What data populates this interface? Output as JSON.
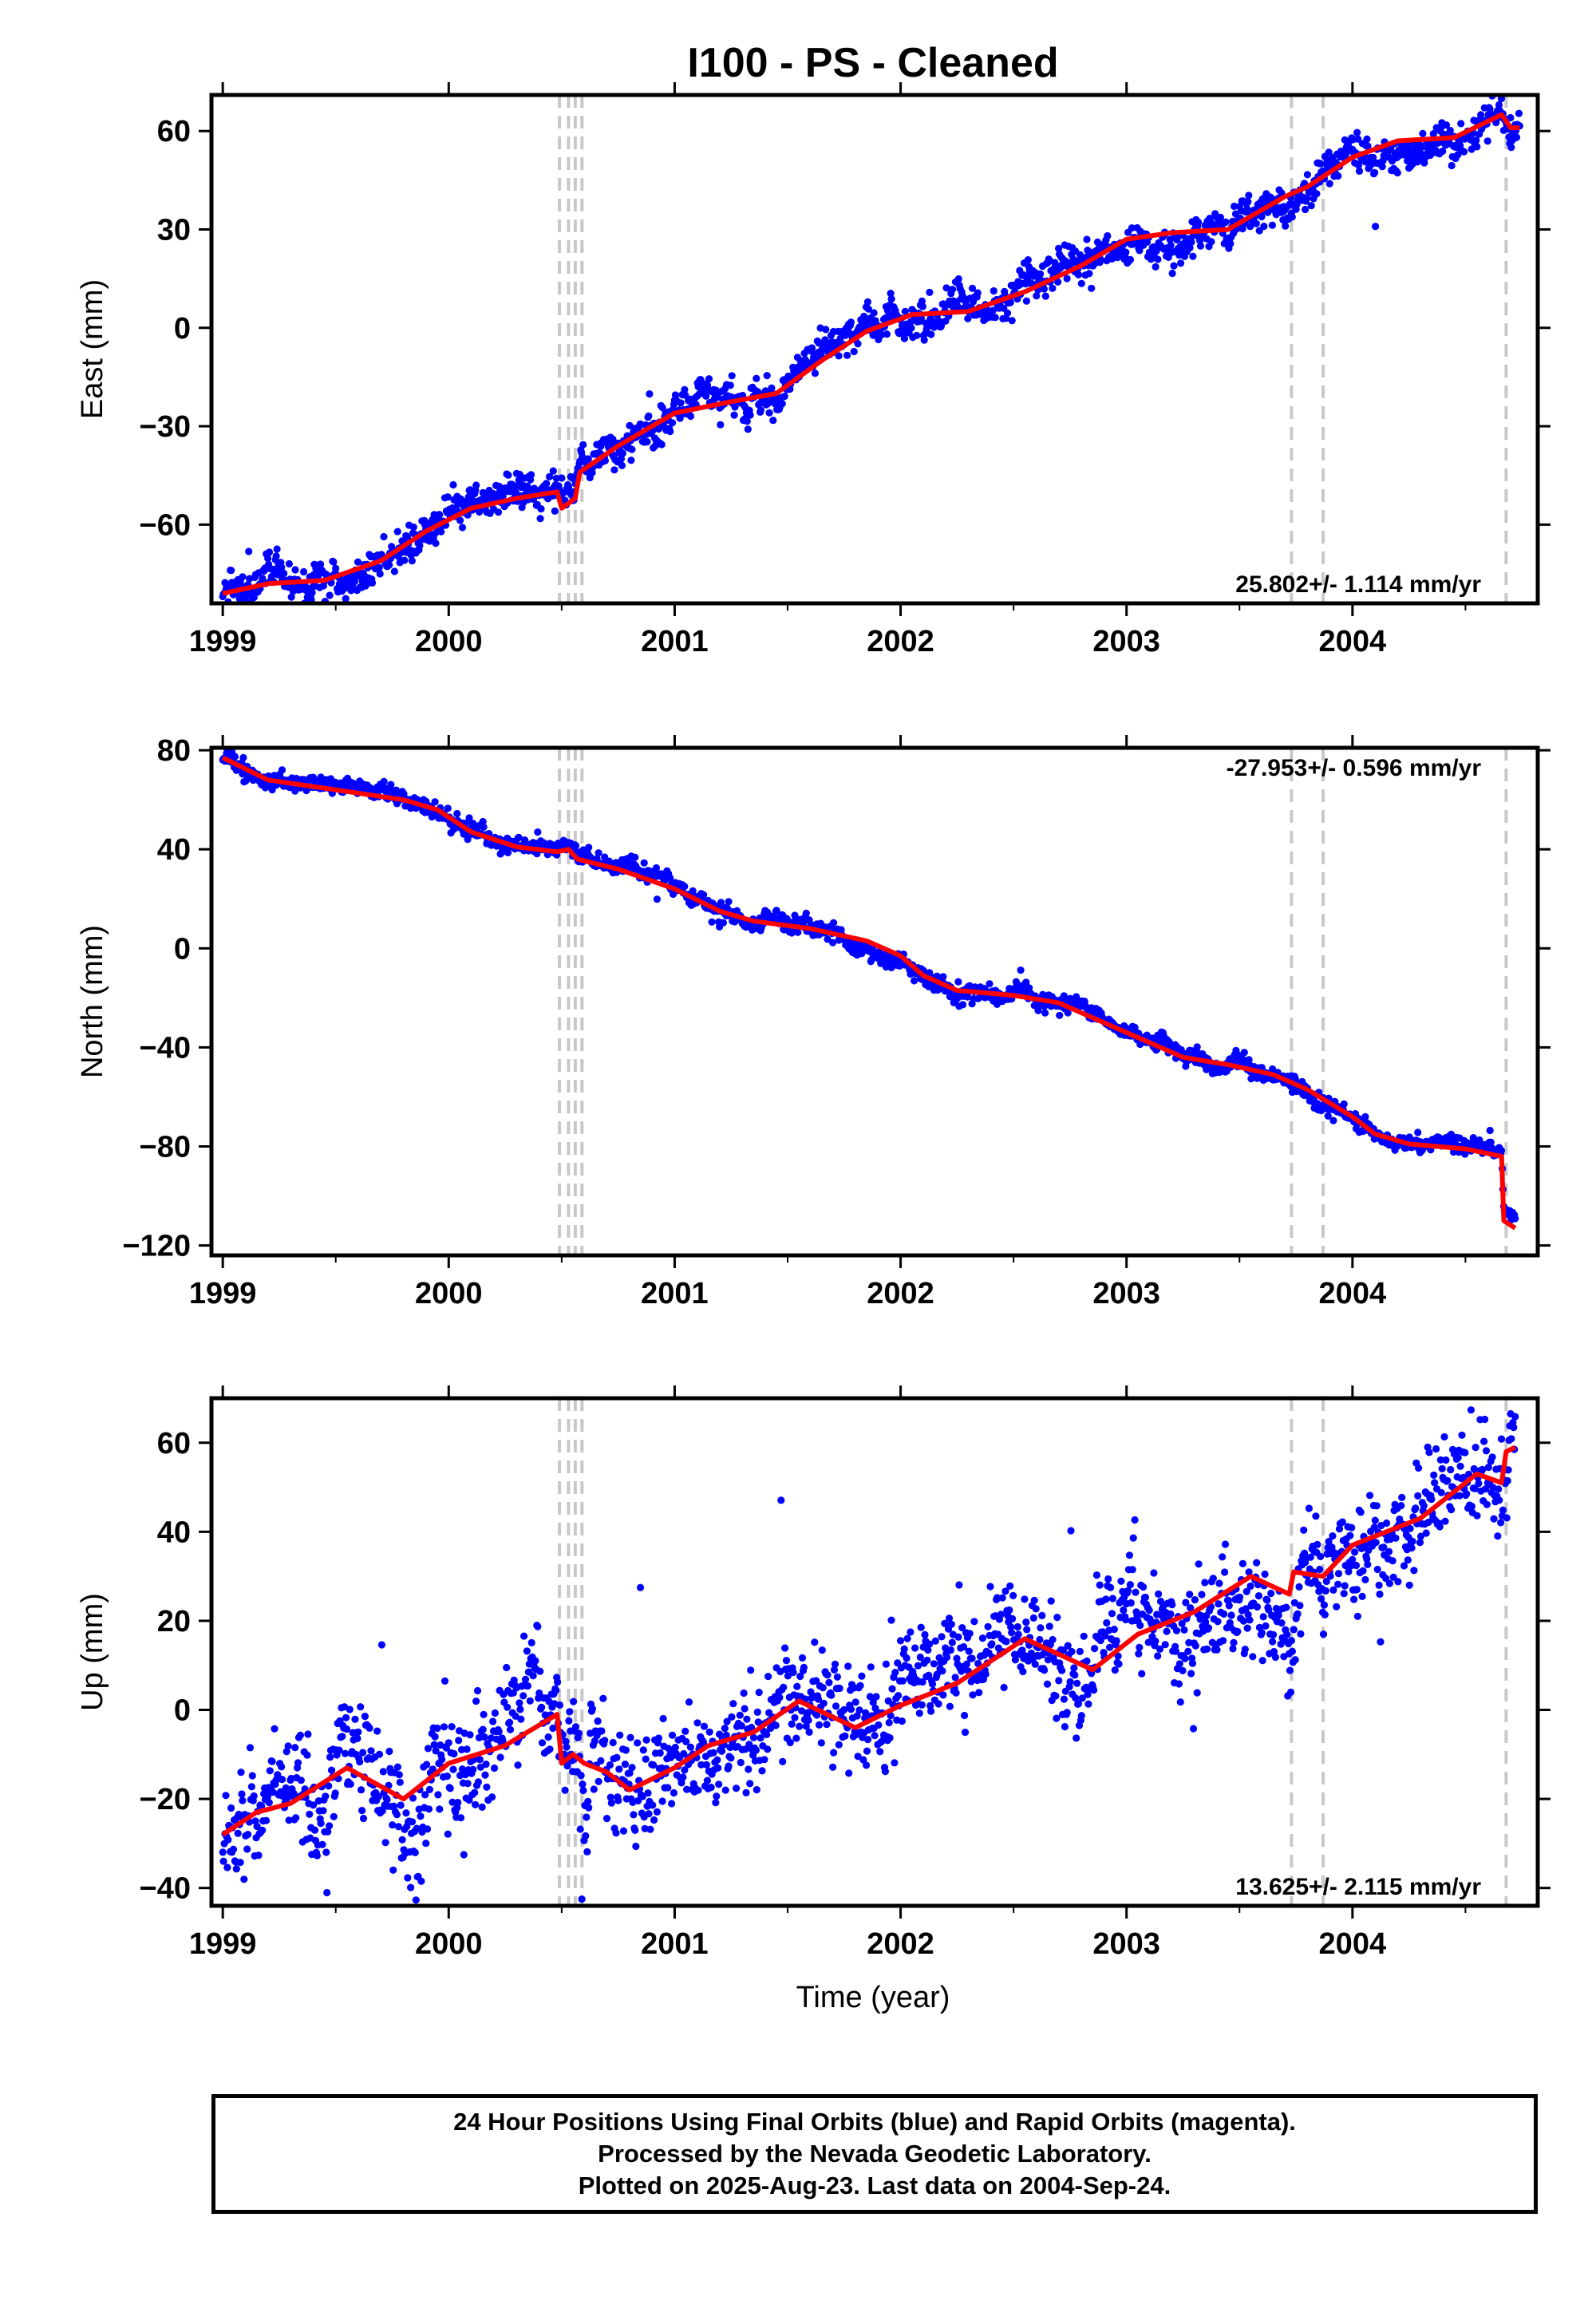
{
  "title": "I100  - PS - Cleaned",
  "xlabel": "Time (year)",
  "x_ticks": [
    "1999",
    "2000",
    "2001",
    "2002",
    "2003",
    "2004"
  ],
  "colors": {
    "data": "#0000ff",
    "model": "#ff0000",
    "event_line": "#c8c8c8",
    "rapid": "#ff00ff"
  },
  "footer": {
    "line1": "24 Hour Positions Using Final Orbits (blue) and Rapid Orbits (magenta).",
    "line2": "Processed by the Nevada Geodetic Laboratory.",
    "line3": "Plotted on 2025-Aug-23. Last data on 2004-Sep-24."
  },
  "chart_data": [
    {
      "type": "scatter",
      "ylabel": "East (mm)",
      "rate": "25.802+/- 1.114 mm/yr",
      "rate_position": "bottom-right",
      "xlim": [
        1998.95,
        2004.82
      ],
      "ylim": [
        -84,
        71
      ],
      "y_ticks": [
        "60",
        "30",
        "0",
        "−30",
        "−60"
      ],
      "y_tick_values": [
        60,
        30,
        0,
        -30,
        -60
      ],
      "event_lines": [
        2000.49,
        2000.53,
        2000.56,
        2000.59,
        2003.73,
        2003.87,
        2004.68
      ],
      "model": [
        [
          1999.0,
          -81
        ],
        [
          1999.2,
          -78
        ],
        [
          1999.45,
          -77
        ],
        [
          1999.7,
          -71
        ],
        [
          1999.9,
          -62
        ],
        [
          2000.1,
          -55
        ],
        [
          2000.3,
          -52
        ],
        [
          2000.48,
          -50
        ],
        [
          2000.5,
          -55
        ],
        [
          2000.56,
          -52
        ],
        [
          2000.58,
          -44
        ],
        [
          2000.75,
          -36
        ],
        [
          2001.0,
          -26
        ],
        [
          2001.25,
          -22.5
        ],
        [
          2001.45,
          -20
        ],
        [
          2001.65,
          -10
        ],
        [
          2001.85,
          -1
        ],
        [
          2002.05,
          4
        ],
        [
          2002.3,
          5
        ],
        [
          2002.55,
          11
        ],
        [
          2002.8,
          19
        ],
        [
          2003.0,
          27
        ],
        [
          2003.2,
          29
        ],
        [
          2003.45,
          30
        ],
        [
          2003.7,
          40
        ],
        [
          2003.8,
          43
        ],
        [
          2004.0,
          52
        ],
        [
          2004.2,
          57
        ],
        [
          2004.45,
          58
        ],
        [
          2004.66,
          65
        ],
        [
          2004.7,
          61
        ],
        [
          2004.74,
          61
        ]
      ],
      "noise_sd": 2.5,
      "n_points": 1700
    },
    {
      "type": "scatter",
      "ylabel": "North (mm)",
      "rate": "-27.953+/- 0.596 mm/yr",
      "rate_position": "top-right",
      "xlim": [
        1998.95,
        2004.82
      ],
      "ylim": [
        -124,
        81
      ],
      "y_ticks": [
        "80",
        "40",
        "0",
        "−40",
        "−80",
        "−120"
      ],
      "y_tick_values": [
        80,
        40,
        0,
        -40,
        -80,
        -120
      ],
      "event_lines": [
        2000.49,
        2000.53,
        2000.56,
        2000.59,
        2003.73,
        2003.87,
        2004.68
      ],
      "model": [
        [
          1999.0,
          77
        ],
        [
          1999.2,
          68
        ],
        [
          1999.5,
          64
        ],
        [
          1999.8,
          60
        ],
        [
          1999.95,
          56
        ],
        [
          2000.1,
          47
        ],
        [
          2000.3,
          41
        ],
        [
          2000.48,
          39
        ],
        [
          2000.53,
          40
        ],
        [
          2000.57,
          36
        ],
        [
          2000.75,
          32
        ],
        [
          2001.0,
          24
        ],
        [
          2001.2,
          15
        ],
        [
          2001.35,
          11
        ],
        [
          2001.6,
          8
        ],
        [
          2001.85,
          3
        ],
        [
          2002.0,
          -3
        ],
        [
          2002.1,
          -11
        ],
        [
          2002.25,
          -17
        ],
        [
          2002.5,
          -19
        ],
        [
          2002.7,
          -22
        ],
        [
          2002.9,
          -30
        ],
        [
          2003.05,
          -36
        ],
        [
          2003.25,
          -44
        ],
        [
          2003.45,
          -47
        ],
        [
          2003.65,
          -51
        ],
        [
          2003.8,
          -57
        ],
        [
          2004.0,
          -68
        ],
        [
          2004.1,
          -75
        ],
        [
          2004.25,
          -79
        ],
        [
          2004.5,
          -81
        ],
        [
          2004.66,
          -84
        ],
        [
          2004.67,
          -110
        ],
        [
          2004.72,
          -113
        ]
      ],
      "noise_sd": 1.6,
      "n_points": 1700
    },
    {
      "type": "scatter",
      "ylabel": "Up (mm)",
      "rate": "13.625+/- 2.115 mm/yr",
      "rate_position": "bottom-right",
      "xlim": [
        1998.95,
        2004.82
      ],
      "ylim": [
        -44,
        70
      ],
      "y_ticks": [
        "60",
        "40",
        "20",
        "0",
        "−20",
        "−40"
      ],
      "y_tick_values": [
        60,
        40,
        20,
        0,
        -20,
        -40
      ],
      "event_lines": [
        2000.49,
        2000.53,
        2000.56,
        2000.59,
        2003.73,
        2003.87,
        2004.68
      ],
      "model": [
        [
          1999.0,
          -28
        ],
        [
          1999.15,
          -23
        ],
        [
          1999.3,
          -21
        ],
        [
          1999.55,
          -13
        ],
        [
          1999.8,
          -20
        ],
        [
          2000.0,
          -12
        ],
        [
          2000.25,
          -8
        ],
        [
          2000.48,
          -1
        ],
        [
          2000.5,
          -12
        ],
        [
          2000.55,
          -10
        ],
        [
          2000.6,
          -12
        ],
        [
          2000.7,
          -14
        ],
        [
          2000.8,
          -18
        ],
        [
          2001.0,
          -13
        ],
        [
          2001.15,
          -8
        ],
        [
          2001.35,
          -5
        ],
        [
          2001.55,
          2
        ],
        [
          2001.8,
          -4
        ],
        [
          2002.0,
          1
        ],
        [
          2002.25,
          6
        ],
        [
          2002.55,
          16
        ],
        [
          2002.85,
          9
        ],
        [
          2003.05,
          17
        ],
        [
          2003.3,
          22
        ],
        [
          2003.55,
          30
        ],
        [
          2003.72,
          26
        ],
        [
          2003.74,
          31
        ],
        [
          2003.87,
          30
        ],
        [
          2004.0,
          37
        ],
        [
          2004.3,
          43
        ],
        [
          2004.55,
          53
        ],
        [
          2004.66,
          51
        ],
        [
          2004.68,
          58
        ],
        [
          2004.72,
          59
        ]
      ],
      "noise_sd": 5.5,
      "n_points": 1700
    }
  ]
}
